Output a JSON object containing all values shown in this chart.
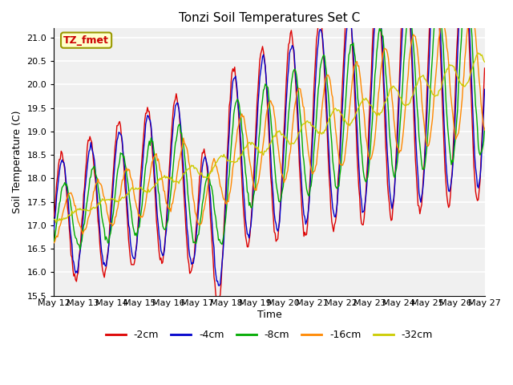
{
  "title": "Tonzi Soil Temperatures Set C",
  "xlabel": "Time",
  "ylabel": "Soil Temperature (C)",
  "ylim": [
    15.5,
    21.2
  ],
  "series_colors": {
    "-2cm": "#dd0000",
    "-4cm": "#0000cc",
    "-8cm": "#00aa00",
    "-16cm": "#ff8800",
    "-32cm": "#cccc00"
  },
  "legend_labels": [
    "-2cm",
    "-4cm",
    "-8cm",
    "-16cm",
    "-32cm"
  ],
  "annotation_text": "TZ_fmet",
  "annotation_color": "#cc0000",
  "annotation_bg": "#ffffcc",
  "annotation_border": "#999900",
  "plot_bg": "#f0f0f0",
  "fig_bg": "#ffffff",
  "grid_color": "#ffffff",
  "tick_dates": [
    "May 12",
    "May 13",
    "May 14",
    "May 15",
    "May 16",
    "May 17",
    "May 18",
    "May 19",
    "May 20",
    "May 21",
    "May 22",
    "May 23",
    "May 24",
    "May 25",
    "May 26",
    "May 27"
  ],
  "n_points": 480,
  "start_day": 12,
  "end_day": 27
}
